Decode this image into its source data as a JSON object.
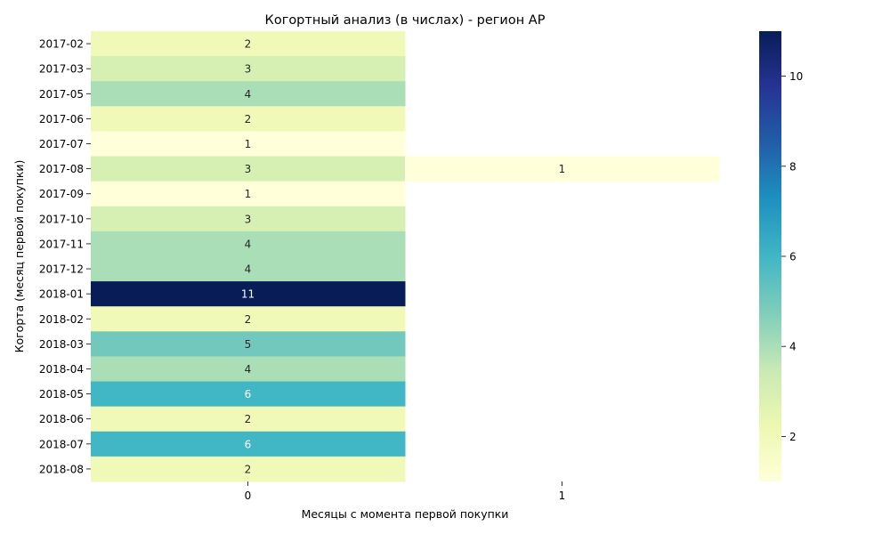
{
  "chart_data": {
    "type": "heatmap",
    "title": "Когортный анализ (в числах) - регион AP",
    "xlabel": "Месяцы с момента первой покупки",
    "ylabel": "Когорта (месяц первой покупки)",
    "x_categories": [
      "0",
      "1"
    ],
    "y_categories": [
      "2017-02",
      "2017-03",
      "2017-05",
      "2017-06",
      "2017-07",
      "2017-08",
      "2017-09",
      "2017-10",
      "2017-11",
      "2017-12",
      "2018-01",
      "2018-02",
      "2018-03",
      "2018-04",
      "2018-05",
      "2018-06",
      "2018-07",
      "2018-08"
    ],
    "values": [
      [
        2,
        null
      ],
      [
        3,
        null
      ],
      [
        4,
        null
      ],
      [
        2,
        null
      ],
      [
        1,
        null
      ],
      [
        3,
        1
      ],
      [
        1,
        null
      ],
      [
        3,
        null
      ],
      [
        4,
        null
      ],
      [
        4,
        null
      ],
      [
        11,
        null
      ],
      [
        2,
        null
      ],
      [
        5,
        null
      ],
      [
        4,
        null
      ],
      [
        6,
        null
      ],
      [
        2,
        null
      ],
      [
        6,
        null
      ],
      [
        2,
        null
      ]
    ],
    "colorbar": {
      "min": 1,
      "max": 11,
      "ticks": [
        2,
        4,
        6,
        8,
        10
      ],
      "colormap": "YlGnBu"
    },
    "grid": false,
    "legend": "colorbar-right"
  }
}
